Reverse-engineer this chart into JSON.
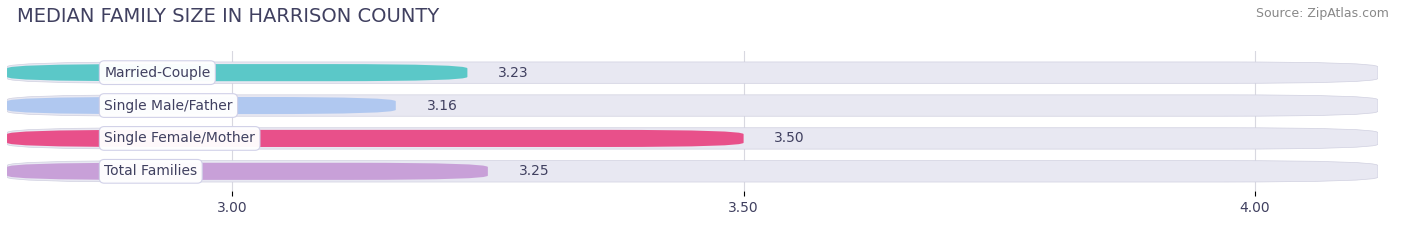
{
  "title": "MEDIAN FAMILY SIZE IN HARRISON COUNTY",
  "source": "Source: ZipAtlas.com",
  "categories": [
    "Married-Couple",
    "Single Male/Father",
    "Single Female/Mother",
    "Total Families"
  ],
  "values": [
    3.23,
    3.16,
    3.5,
    3.25
  ],
  "bar_colors": [
    "#5bc8c8",
    "#b0c8f0",
    "#e8508a",
    "#c8a0d8"
  ],
  "bar_bg_color": "#e8e8f2",
  "xlim_left": 2.78,
  "xlim_right": 4.12,
  "xticks": [
    3.0,
    3.5,
    4.0
  ],
  "title_fontsize": 14,
  "source_fontsize": 9,
  "tick_fontsize": 10,
  "value_fontsize": 10,
  "bar_label_fontsize": 10,
  "fig_bg_color": "#ffffff",
  "text_color": "#404060",
  "grid_color": "#d8d8e0",
  "source_color": "#888888"
}
